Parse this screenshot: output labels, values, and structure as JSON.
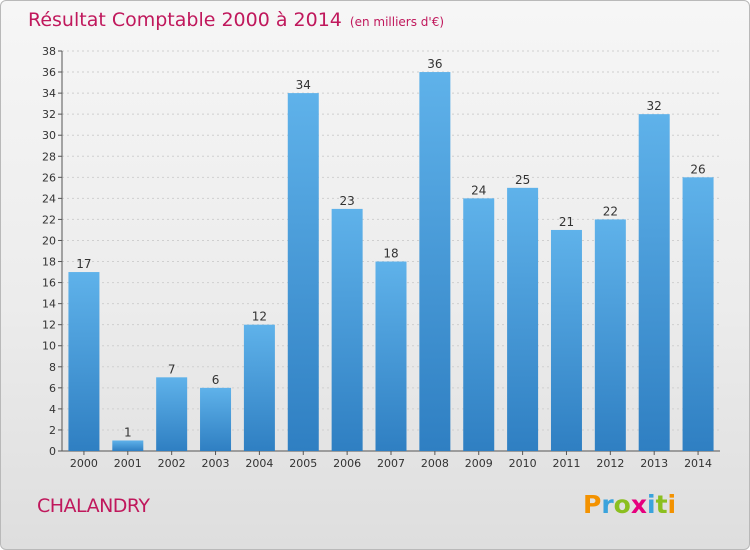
{
  "chart_data": {
    "type": "bar",
    "title": "Résultat Comptable 2000 à 2014",
    "subtitle": "(en milliers d'€)",
    "categories": [
      "2000",
      "2001",
      "2002",
      "2003",
      "2004",
      "2005",
      "2006",
      "2007",
      "2008",
      "2009",
      "2010",
      "2011",
      "2012",
      "2013",
      "2014"
    ],
    "values": [
      17,
      1,
      7,
      6,
      12,
      34,
      23,
      18,
      36,
      24,
      25,
      21,
      22,
      32,
      26
    ],
    "ylim": [
      0,
      38
    ],
    "yticks": [
      0,
      2,
      4,
      6,
      8,
      10,
      12,
      14,
      16,
      18,
      20,
      22,
      24,
      26,
      28,
      30,
      32,
      34,
      36,
      38
    ],
    "grid": true,
    "bar_color": "#3a93d6",
    "xlabel": "",
    "ylabel": ""
  },
  "commune": "CHALANDRY",
  "logo": {
    "letters": [
      "P",
      "r",
      "o",
      "x",
      "i",
      "t",
      "i"
    ],
    "colors": [
      "#f39200",
      "#3aa3dc",
      "#8bbf1f",
      "#e6007e",
      "#3aa3dc",
      "#8bbf1f",
      "#f39200"
    ]
  },
  "colors": {
    "title": "#c0185c",
    "axis": "#333333",
    "grid": "#cfcfcf"
  }
}
